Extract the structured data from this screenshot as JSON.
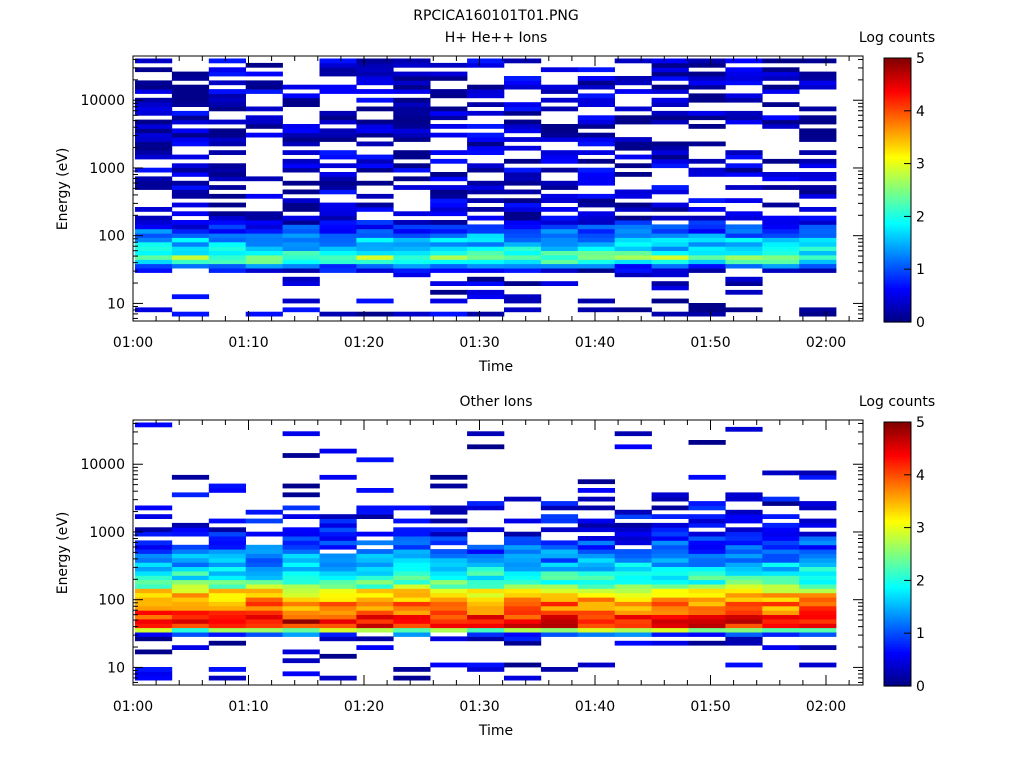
{
  "figure_title": "RPCICA160101T01.PNG",
  "chart_data": [
    {
      "type": "heatmap",
      "title": "H+ He++ Ions",
      "xlabel": "Time",
      "ylabel": "Energy (eV)",
      "x_ticks": [
        "01:00",
        "01:10",
        "01:20",
        "01:30",
        "01:40",
        "01:50",
        "02:00"
      ],
      "x_range": [
        "01:00",
        "02:03"
      ],
      "y_ticks": [
        {
          "value": 10,
          "label": "10"
        },
        {
          "value": 100,
          "label": "100"
        },
        {
          "value": 1000,
          "label": "1000"
        },
        {
          "value": 10000,
          "label": "10000"
        }
      ],
      "y_scale": "log",
      "ylim": [
        5.5,
        45000
      ],
      "colorbar": {
        "label": "Log counts",
        "min": 0,
        "max": 5,
        "ticks": [
          "0",
          "1",
          "2",
          "3",
          "4",
          "5"
        ],
        "colormap": "jet"
      },
      "profile": [
        {
          "emin": 6.5,
          "emax": 9,
          "mean": 0.3,
          "frac": 0.3
        },
        {
          "emin": 9,
          "emax": 12,
          "mean": 0.3,
          "frac": 0.2
        },
        {
          "emin": 12,
          "emax": 16,
          "mean": 0.3,
          "frac": 0.2
        },
        {
          "emin": 16,
          "emax": 21,
          "mean": 0.3,
          "frac": 0.3
        },
        {
          "emin": 21,
          "emax": 28,
          "mean": 0.3,
          "frac": 0.1
        },
        {
          "emin": 28,
          "emax": 34,
          "mean": 0.45,
          "frac": 0.7
        },
        {
          "emin": 34,
          "emax": 40,
          "mean": 1.0,
          "frac": 1.0
        },
        {
          "emin": 40,
          "emax": 47,
          "mean": 2.0,
          "frac": 1.0
        },
        {
          "emin": 47,
          "emax": 55,
          "mean": 2.5,
          "frac": 1.0
        },
        {
          "emin": 55,
          "emax": 64,
          "mean": 2.0,
          "frac": 1.0
        },
        {
          "emin": 64,
          "emax": 75,
          "mean": 1.7,
          "frac": 1.0
        },
        {
          "emin": 75,
          "emax": 88,
          "mean": 1.5,
          "frac": 1.0
        },
        {
          "emin": 88,
          "emax": 103,
          "mean": 1.3,
          "frac": 1.0
        },
        {
          "emin": 103,
          "emax": 121,
          "mean": 1.0,
          "frac": 1.0
        },
        {
          "emin": 121,
          "emax": 142,
          "mean": 0.8,
          "frac": 1.0
        },
        {
          "emin": 142,
          "emax": 166,
          "mean": 0.5,
          "frac": 0.9
        },
        {
          "emin": 166,
          "emax": 195,
          "mean": 0.4,
          "frac": 0.8
        },
        {
          "emin": 195,
          "emax": 230,
          "mean": 0.35,
          "frac": 0.55
        },
        {
          "emin": 230,
          "emax": 45000,
          "mean": 0.3,
          "frac": 0.55
        }
      ]
    },
    {
      "type": "heatmap",
      "title": "Other Ions",
      "xlabel": "Time",
      "ylabel": "Energy (eV)",
      "x_ticks": [
        "01:00",
        "01:10",
        "01:20",
        "01:30",
        "01:40",
        "01:50",
        "02:00"
      ],
      "x_range": [
        "01:00",
        "02:03"
      ],
      "y_ticks": [
        {
          "value": 10,
          "label": "10"
        },
        {
          "value": 100,
          "label": "100"
        },
        {
          "value": 1000,
          "label": "1000"
        },
        {
          "value": 10000,
          "label": "10000"
        }
      ],
      "y_scale": "log",
      "ylim": [
        5.5,
        45000
      ],
      "colorbar": {
        "label": "Log counts",
        "min": 0,
        "max": 5,
        "ticks": [
          "0",
          "1",
          "2",
          "3",
          "4",
          "5"
        ],
        "colormap": "jet"
      },
      "profile": [
        {
          "emin": 6.5,
          "emax": 9,
          "mean": 0.3,
          "frac": 0.25
        },
        {
          "emin": 9,
          "emax": 12,
          "mean": 0.3,
          "frac": 0.35
        },
        {
          "emin": 12,
          "emax": 16,
          "mean": 0.3,
          "frac": 0.1
        },
        {
          "emin": 16,
          "emax": 21,
          "mean": 0.3,
          "frac": 0.15
        },
        {
          "emin": 21,
          "emax": 28,
          "mean": 0.4,
          "frac": 0.35
        },
        {
          "emin": 28,
          "emax": 34,
          "mean": 1.0,
          "frac": 0.9
        },
        {
          "emin": 34,
          "emax": 40,
          "mean": 2.5,
          "frac": 1.0
        },
        {
          "emin": 40,
          "emax": 47,
          "mean": 4.3,
          "frac": 1.0
        },
        {
          "emin": 47,
          "emax": 55,
          "mean": 4.5,
          "frac": 1.0
        },
        {
          "emin": 55,
          "emax": 64,
          "mean": 4.2,
          "frac": 1.0
        },
        {
          "emin": 64,
          "emax": 75,
          "mean": 4.0,
          "frac": 1.0
        },
        {
          "emin": 75,
          "emax": 88,
          "mean": 3.8,
          "frac": 1.0
        },
        {
          "emin": 88,
          "emax": 103,
          "mean": 3.5,
          "frac": 1.0
        },
        {
          "emin": 103,
          "emax": 121,
          "mean": 3.3,
          "frac": 1.0
        },
        {
          "emin": 121,
          "emax": 142,
          "mean": 3.1,
          "frac": 1.0
        },
        {
          "emin": 142,
          "emax": 166,
          "mean": 2.5,
          "frac": 1.0
        },
        {
          "emin": 166,
          "emax": 195,
          "mean": 2.2,
          "frac": 1.0
        },
        {
          "emin": 195,
          "emax": 230,
          "mean": 2.0,
          "frac": 1.0
        },
        {
          "emin": 230,
          "emax": 270,
          "mean": 1.9,
          "frac": 1.0
        },
        {
          "emin": 270,
          "emax": 320,
          "mean": 1.8,
          "frac": 1.0
        },
        {
          "emin": 320,
          "emax": 380,
          "mean": 1.5,
          "frac": 1.0
        },
        {
          "emin": 380,
          "emax": 450,
          "mean": 1.3,
          "frac": 1.0
        },
        {
          "emin": 450,
          "emax": 530,
          "mean": 1.1,
          "frac": 0.95
        },
        {
          "emin": 530,
          "emax": 630,
          "mean": 1.0,
          "frac": 0.9
        },
        {
          "emin": 630,
          "emax": 750,
          "mean": 0.9,
          "frac": 0.85
        },
        {
          "emin": 750,
          "emax": 900,
          "mean": 0.8,
          "frac": 0.8
        },
        {
          "emin": 900,
          "emax": 1100,
          "mean": 0.6,
          "frac": 0.7
        },
        {
          "emin": 1100,
          "emax": 1400,
          "mean": 0.5,
          "frac": 0.6
        },
        {
          "emin": 1400,
          "emax": 1900,
          "mean": 0.5,
          "frac": 0.5
        },
        {
          "emin": 1900,
          "emax": 2600,
          "mean": 0.45,
          "frac": 0.35
        },
        {
          "emin": 2600,
          "emax": 4000,
          "mean": 0.4,
          "frac": 0.3
        },
        {
          "emin": 4000,
          "emax": 6500,
          "mean": 0.35,
          "frac": 0.15
        },
        {
          "emin": 6500,
          "emax": 45000,
          "mean": 0.3,
          "frac": 0.05
        }
      ]
    }
  ]
}
